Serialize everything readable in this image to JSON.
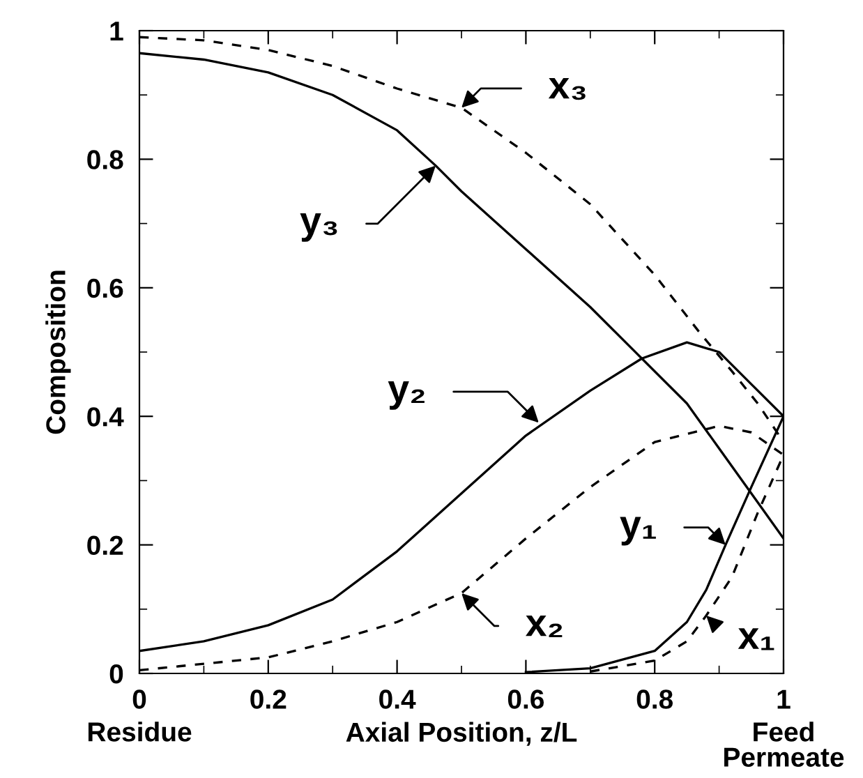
{
  "chart_data": {
    "type": "line",
    "xlabel": "Axial Position, z/L",
    "ylabel": "Composition",
    "xlim": [
      0,
      1
    ],
    "ylim": [
      0,
      1
    ],
    "xticks": [
      0,
      0.2,
      0.4,
      0.6,
      0.8,
      1
    ],
    "yticks": [
      0,
      0.2,
      0.4,
      0.6,
      0.8,
      1
    ],
    "grid": false,
    "marker": "none",
    "series": [
      {
        "color": "#000000",
        "line_style": "solid",
        "x": [
          0,
          0.1,
          0.2,
          0.3,
          0.4,
          0.46,
          0.5,
          0.6,
          0.7,
          0.78,
          0.85,
          0.9,
          0.95,
          1
        ],
        "values": [
          0.965,
          0.955,
          0.935,
          0.9,
          0.845,
          0.79,
          0.75,
          0.66,
          0.57,
          0.49,
          0.42,
          0.35,
          0.28,
          0.21
        ]
      },
      {
        "color": "#000000",
        "line_style": "dashed",
        "x": [
          0,
          0.1,
          0.2,
          0.3,
          0.4,
          0.5,
          0.6,
          0.7,
          0.8,
          0.87,
          0.92,
          0.96,
          1
        ],
        "values": [
          0.99,
          0.985,
          0.97,
          0.945,
          0.91,
          0.88,
          0.81,
          0.73,
          0.62,
          0.53,
          0.47,
          0.42,
          0.36
        ]
      },
      {
        "color": "#000000",
        "line_style": "solid",
        "x": [
          0,
          0.1,
          0.2,
          0.3,
          0.4,
          0.5,
          0.6,
          0.7,
          0.78,
          0.85,
          0.9,
          0.95,
          1
        ],
        "values": [
          0.035,
          0.05,
          0.075,
          0.115,
          0.19,
          0.28,
          0.37,
          0.44,
          0.49,
          0.515,
          0.5,
          0.45,
          0.4
        ]
      },
      {
        "color": "#000000",
        "line_style": "dashed",
        "x": [
          0,
          0.2,
          0.3,
          0.4,
          0.5,
          0.6,
          0.7,
          0.8,
          0.9,
          0.95,
          1
        ],
        "values": [
          0.005,
          0.025,
          0.05,
          0.08,
          0.125,
          0.21,
          0.29,
          0.36,
          0.385,
          0.375,
          0.34
        ]
      },
      {
        "color": "#000000",
        "line_style": "solid",
        "x": [
          0.6,
          0.7,
          0.8,
          0.85,
          0.88,
          0.91,
          0.95,
          1
        ],
        "values": [
          0.002,
          0.008,
          0.035,
          0.08,
          0.13,
          0.2,
          0.29,
          0.4
        ]
      },
      {
        "color": "#000000",
        "line_style": "dashed",
        "x": [
          0.7,
          0.8,
          0.85,
          0.88,
          0.92,
          0.96,
          1
        ],
        "values": [
          0.003,
          0.02,
          0.05,
          0.09,
          0.15,
          0.25,
          0.34
        ]
      }
    ],
    "annotations": [
      {
        "text": "y₃",
        "x": 0.46,
        "y": 0.79
      },
      {
        "text": "x₃",
        "x": 0.5,
        "y": 0.88
      },
      {
        "text": "y₂",
        "x": 0.62,
        "y": 0.39
      },
      {
        "text": "x₂",
        "x": 0.5,
        "y": 0.125
      },
      {
        "text": "y₁",
        "x": 0.91,
        "y": 0.2
      },
      {
        "text": "x₁",
        "x": 0.88,
        "y": 0.09
      },
      "Residue",
      "Feed\nPermeate"
    ]
  }
}
